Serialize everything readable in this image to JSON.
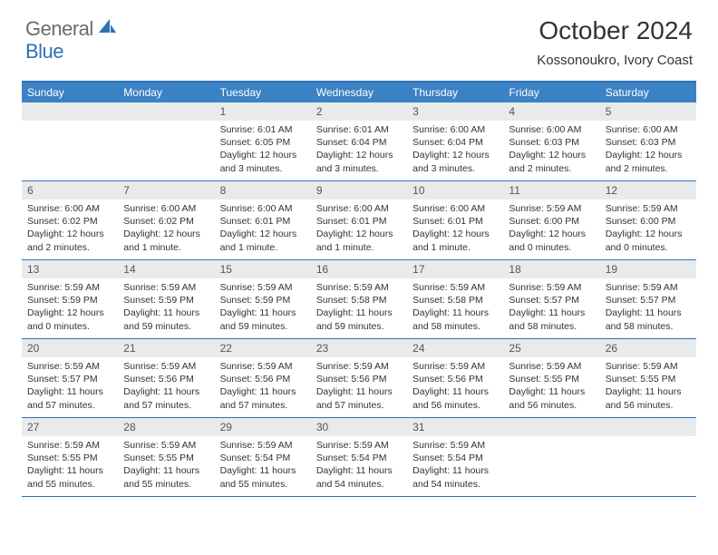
{
  "logo": {
    "general": "General",
    "blue": "Blue"
  },
  "title": "October 2024",
  "location": "Kossonoukro, Ivory Coast",
  "colors": {
    "accent": "#2d72b5",
    "header_bg": "#3b82c4",
    "band_bg": "#e9eaeb",
    "text": "#333333"
  },
  "day_headers": [
    "Sunday",
    "Monday",
    "Tuesday",
    "Wednesday",
    "Thursday",
    "Friday",
    "Saturday"
  ],
  "weeks": [
    [
      {
        "n": "",
        "sr": "",
        "ss": "",
        "dl": ""
      },
      {
        "n": "",
        "sr": "",
        "ss": "",
        "dl": ""
      },
      {
        "n": "1",
        "sr": "Sunrise: 6:01 AM",
        "ss": "Sunset: 6:05 PM",
        "dl": "Daylight: 12 hours and 3 minutes."
      },
      {
        "n": "2",
        "sr": "Sunrise: 6:01 AM",
        "ss": "Sunset: 6:04 PM",
        "dl": "Daylight: 12 hours and 3 minutes."
      },
      {
        "n": "3",
        "sr": "Sunrise: 6:00 AM",
        "ss": "Sunset: 6:04 PM",
        "dl": "Daylight: 12 hours and 3 minutes."
      },
      {
        "n": "4",
        "sr": "Sunrise: 6:00 AM",
        "ss": "Sunset: 6:03 PM",
        "dl": "Daylight: 12 hours and 2 minutes."
      },
      {
        "n": "5",
        "sr": "Sunrise: 6:00 AM",
        "ss": "Sunset: 6:03 PM",
        "dl": "Daylight: 12 hours and 2 minutes."
      }
    ],
    [
      {
        "n": "6",
        "sr": "Sunrise: 6:00 AM",
        "ss": "Sunset: 6:02 PM",
        "dl": "Daylight: 12 hours and 2 minutes."
      },
      {
        "n": "7",
        "sr": "Sunrise: 6:00 AM",
        "ss": "Sunset: 6:02 PM",
        "dl": "Daylight: 12 hours and 1 minute."
      },
      {
        "n": "8",
        "sr": "Sunrise: 6:00 AM",
        "ss": "Sunset: 6:01 PM",
        "dl": "Daylight: 12 hours and 1 minute."
      },
      {
        "n": "9",
        "sr": "Sunrise: 6:00 AM",
        "ss": "Sunset: 6:01 PM",
        "dl": "Daylight: 12 hours and 1 minute."
      },
      {
        "n": "10",
        "sr": "Sunrise: 6:00 AM",
        "ss": "Sunset: 6:01 PM",
        "dl": "Daylight: 12 hours and 1 minute."
      },
      {
        "n": "11",
        "sr": "Sunrise: 5:59 AM",
        "ss": "Sunset: 6:00 PM",
        "dl": "Daylight: 12 hours and 0 minutes."
      },
      {
        "n": "12",
        "sr": "Sunrise: 5:59 AM",
        "ss": "Sunset: 6:00 PM",
        "dl": "Daylight: 12 hours and 0 minutes."
      }
    ],
    [
      {
        "n": "13",
        "sr": "Sunrise: 5:59 AM",
        "ss": "Sunset: 5:59 PM",
        "dl": "Daylight: 12 hours and 0 minutes."
      },
      {
        "n": "14",
        "sr": "Sunrise: 5:59 AM",
        "ss": "Sunset: 5:59 PM",
        "dl": "Daylight: 11 hours and 59 minutes."
      },
      {
        "n": "15",
        "sr": "Sunrise: 5:59 AM",
        "ss": "Sunset: 5:59 PM",
        "dl": "Daylight: 11 hours and 59 minutes."
      },
      {
        "n": "16",
        "sr": "Sunrise: 5:59 AM",
        "ss": "Sunset: 5:58 PM",
        "dl": "Daylight: 11 hours and 59 minutes."
      },
      {
        "n": "17",
        "sr": "Sunrise: 5:59 AM",
        "ss": "Sunset: 5:58 PM",
        "dl": "Daylight: 11 hours and 58 minutes."
      },
      {
        "n": "18",
        "sr": "Sunrise: 5:59 AM",
        "ss": "Sunset: 5:57 PM",
        "dl": "Daylight: 11 hours and 58 minutes."
      },
      {
        "n": "19",
        "sr": "Sunrise: 5:59 AM",
        "ss": "Sunset: 5:57 PM",
        "dl": "Daylight: 11 hours and 58 minutes."
      }
    ],
    [
      {
        "n": "20",
        "sr": "Sunrise: 5:59 AM",
        "ss": "Sunset: 5:57 PM",
        "dl": "Daylight: 11 hours and 57 minutes."
      },
      {
        "n": "21",
        "sr": "Sunrise: 5:59 AM",
        "ss": "Sunset: 5:56 PM",
        "dl": "Daylight: 11 hours and 57 minutes."
      },
      {
        "n": "22",
        "sr": "Sunrise: 5:59 AM",
        "ss": "Sunset: 5:56 PM",
        "dl": "Daylight: 11 hours and 57 minutes."
      },
      {
        "n": "23",
        "sr": "Sunrise: 5:59 AM",
        "ss": "Sunset: 5:56 PM",
        "dl": "Daylight: 11 hours and 57 minutes."
      },
      {
        "n": "24",
        "sr": "Sunrise: 5:59 AM",
        "ss": "Sunset: 5:56 PM",
        "dl": "Daylight: 11 hours and 56 minutes."
      },
      {
        "n": "25",
        "sr": "Sunrise: 5:59 AM",
        "ss": "Sunset: 5:55 PM",
        "dl": "Daylight: 11 hours and 56 minutes."
      },
      {
        "n": "26",
        "sr": "Sunrise: 5:59 AM",
        "ss": "Sunset: 5:55 PM",
        "dl": "Daylight: 11 hours and 56 minutes."
      }
    ],
    [
      {
        "n": "27",
        "sr": "Sunrise: 5:59 AM",
        "ss": "Sunset: 5:55 PM",
        "dl": "Daylight: 11 hours and 55 minutes."
      },
      {
        "n": "28",
        "sr": "Sunrise: 5:59 AM",
        "ss": "Sunset: 5:55 PM",
        "dl": "Daylight: 11 hours and 55 minutes."
      },
      {
        "n": "29",
        "sr": "Sunrise: 5:59 AM",
        "ss": "Sunset: 5:54 PM",
        "dl": "Daylight: 11 hours and 55 minutes."
      },
      {
        "n": "30",
        "sr": "Sunrise: 5:59 AM",
        "ss": "Sunset: 5:54 PM",
        "dl": "Daylight: 11 hours and 54 minutes."
      },
      {
        "n": "31",
        "sr": "Sunrise: 5:59 AM",
        "ss": "Sunset: 5:54 PM",
        "dl": "Daylight: 11 hours and 54 minutes."
      },
      {
        "n": "",
        "sr": "",
        "ss": "",
        "dl": ""
      },
      {
        "n": "",
        "sr": "",
        "ss": "",
        "dl": ""
      }
    ]
  ]
}
